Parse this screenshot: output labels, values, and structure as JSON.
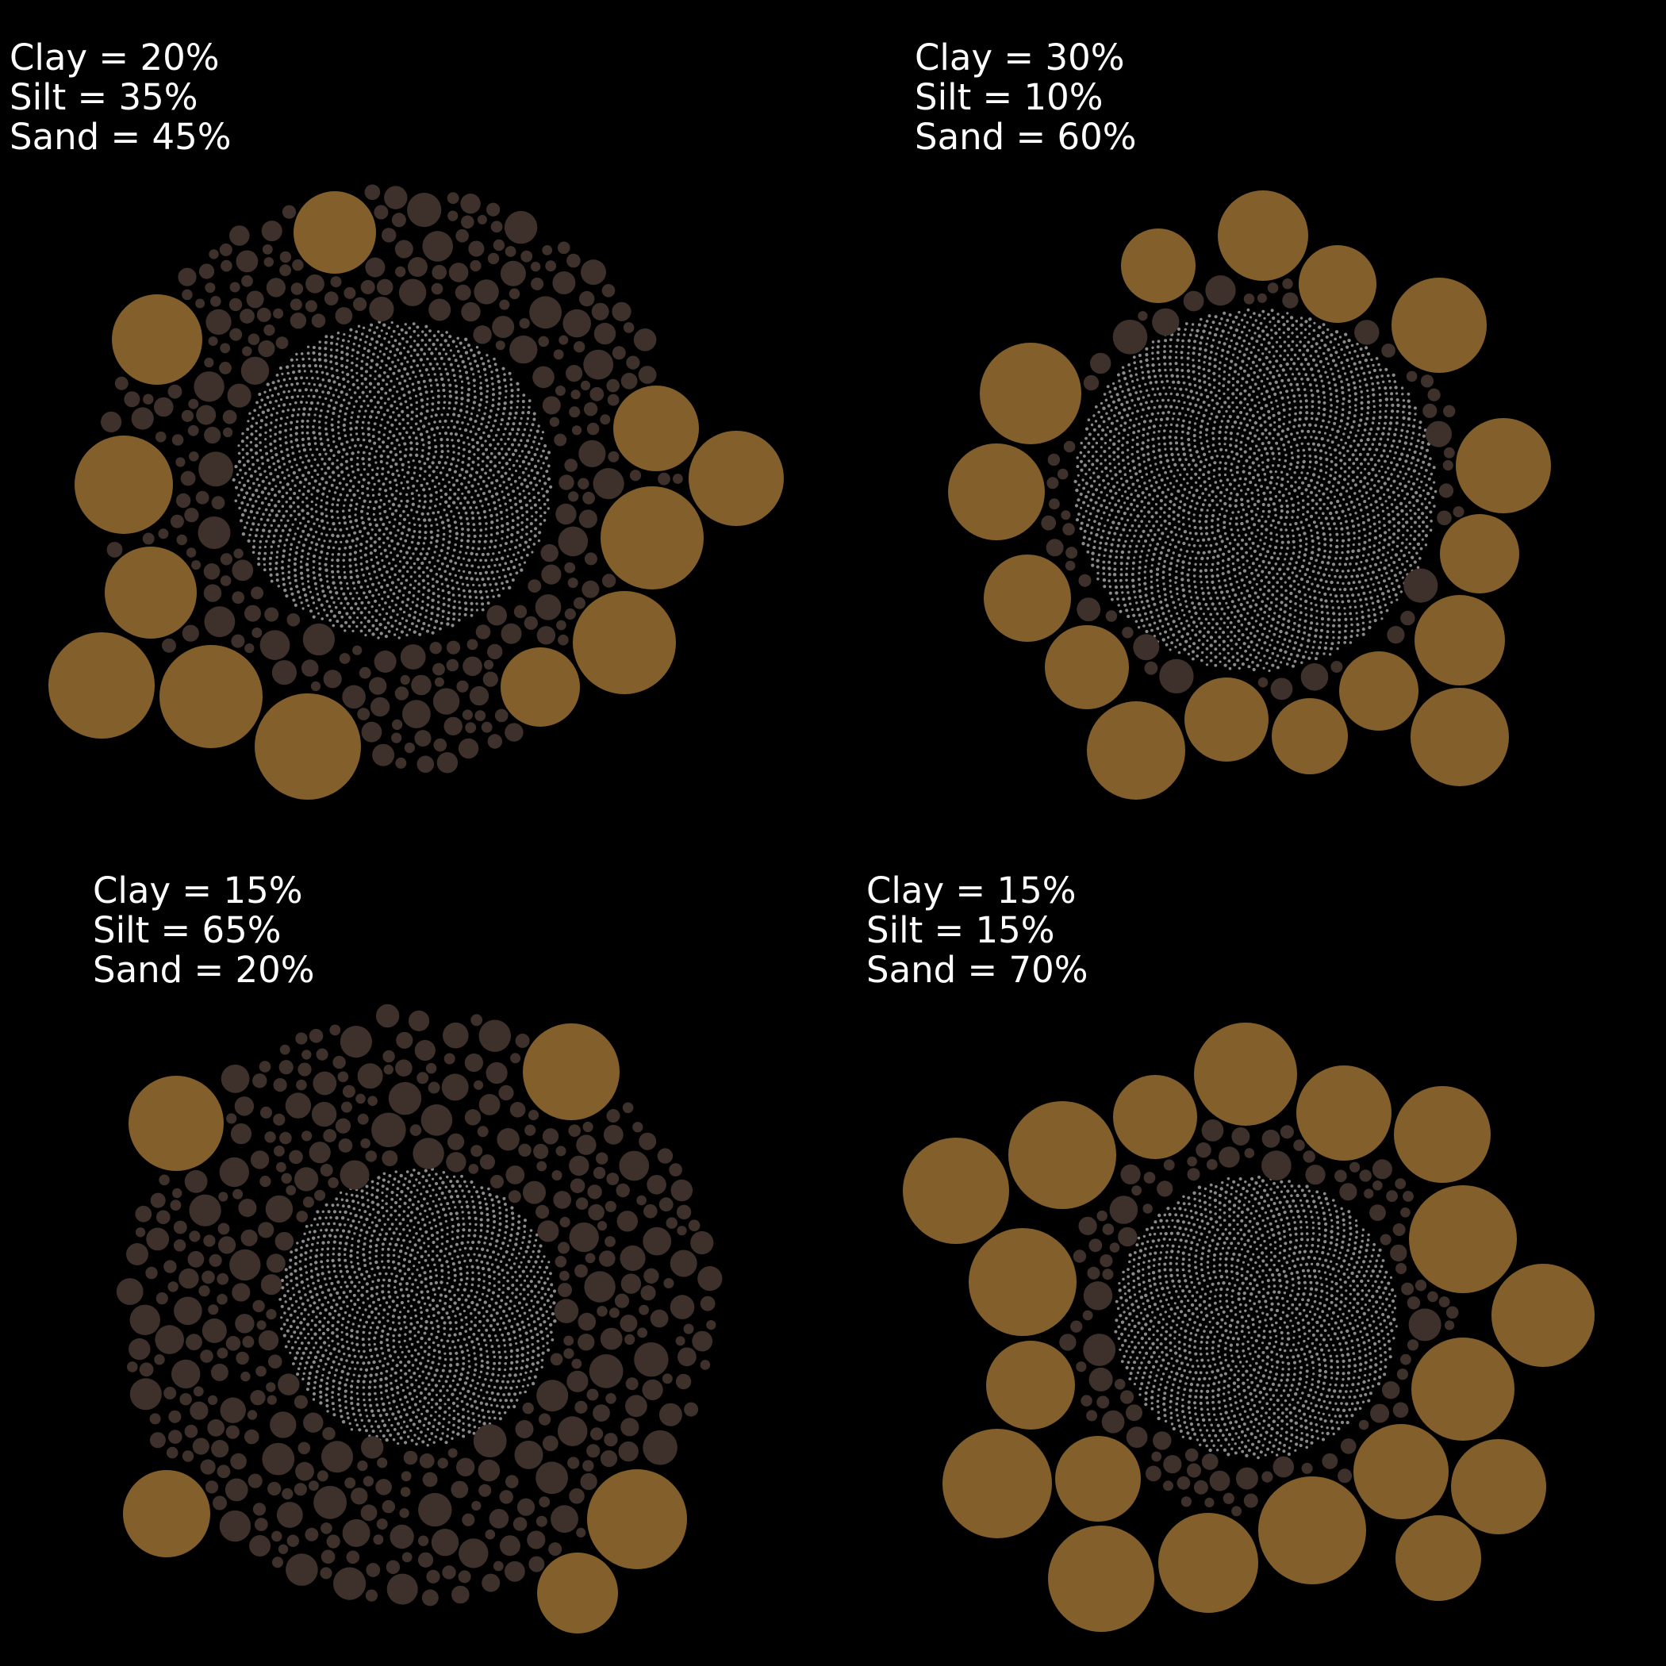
{
  "colors": {
    "background": "#000000",
    "text": "#ffffff",
    "sand": "#835f2c",
    "silt": "#3e312c",
    "clay": "#8a8a8a"
  },
  "panels": [
    {
      "clay_label": "Clay = 20%",
      "silt_label": "Silt = 35%",
      "sand_label": "Sand = 45%",
      "composition": {
        "clay": 20,
        "silt": 35,
        "sand": 45
      }
    },
    {
      "clay_label": "Clay = 30%",
      "silt_label": "Silt = 10%",
      "sand_label": "Sand = 60%",
      "composition": {
        "clay": 30,
        "silt": 10,
        "sand": 60
      }
    },
    {
      "clay_label": "Clay = 15%",
      "silt_label": "Silt = 65%",
      "sand_label": "Sand = 20%",
      "composition": {
        "clay": 15,
        "silt": 65,
        "sand": 20
      }
    },
    {
      "clay_label": "Clay = 15%",
      "silt_label": "Silt = 15%",
      "sand_label": "Sand = 70%",
      "composition": {
        "clay": 15,
        "silt": 15,
        "sand": 70
      }
    }
  ]
}
